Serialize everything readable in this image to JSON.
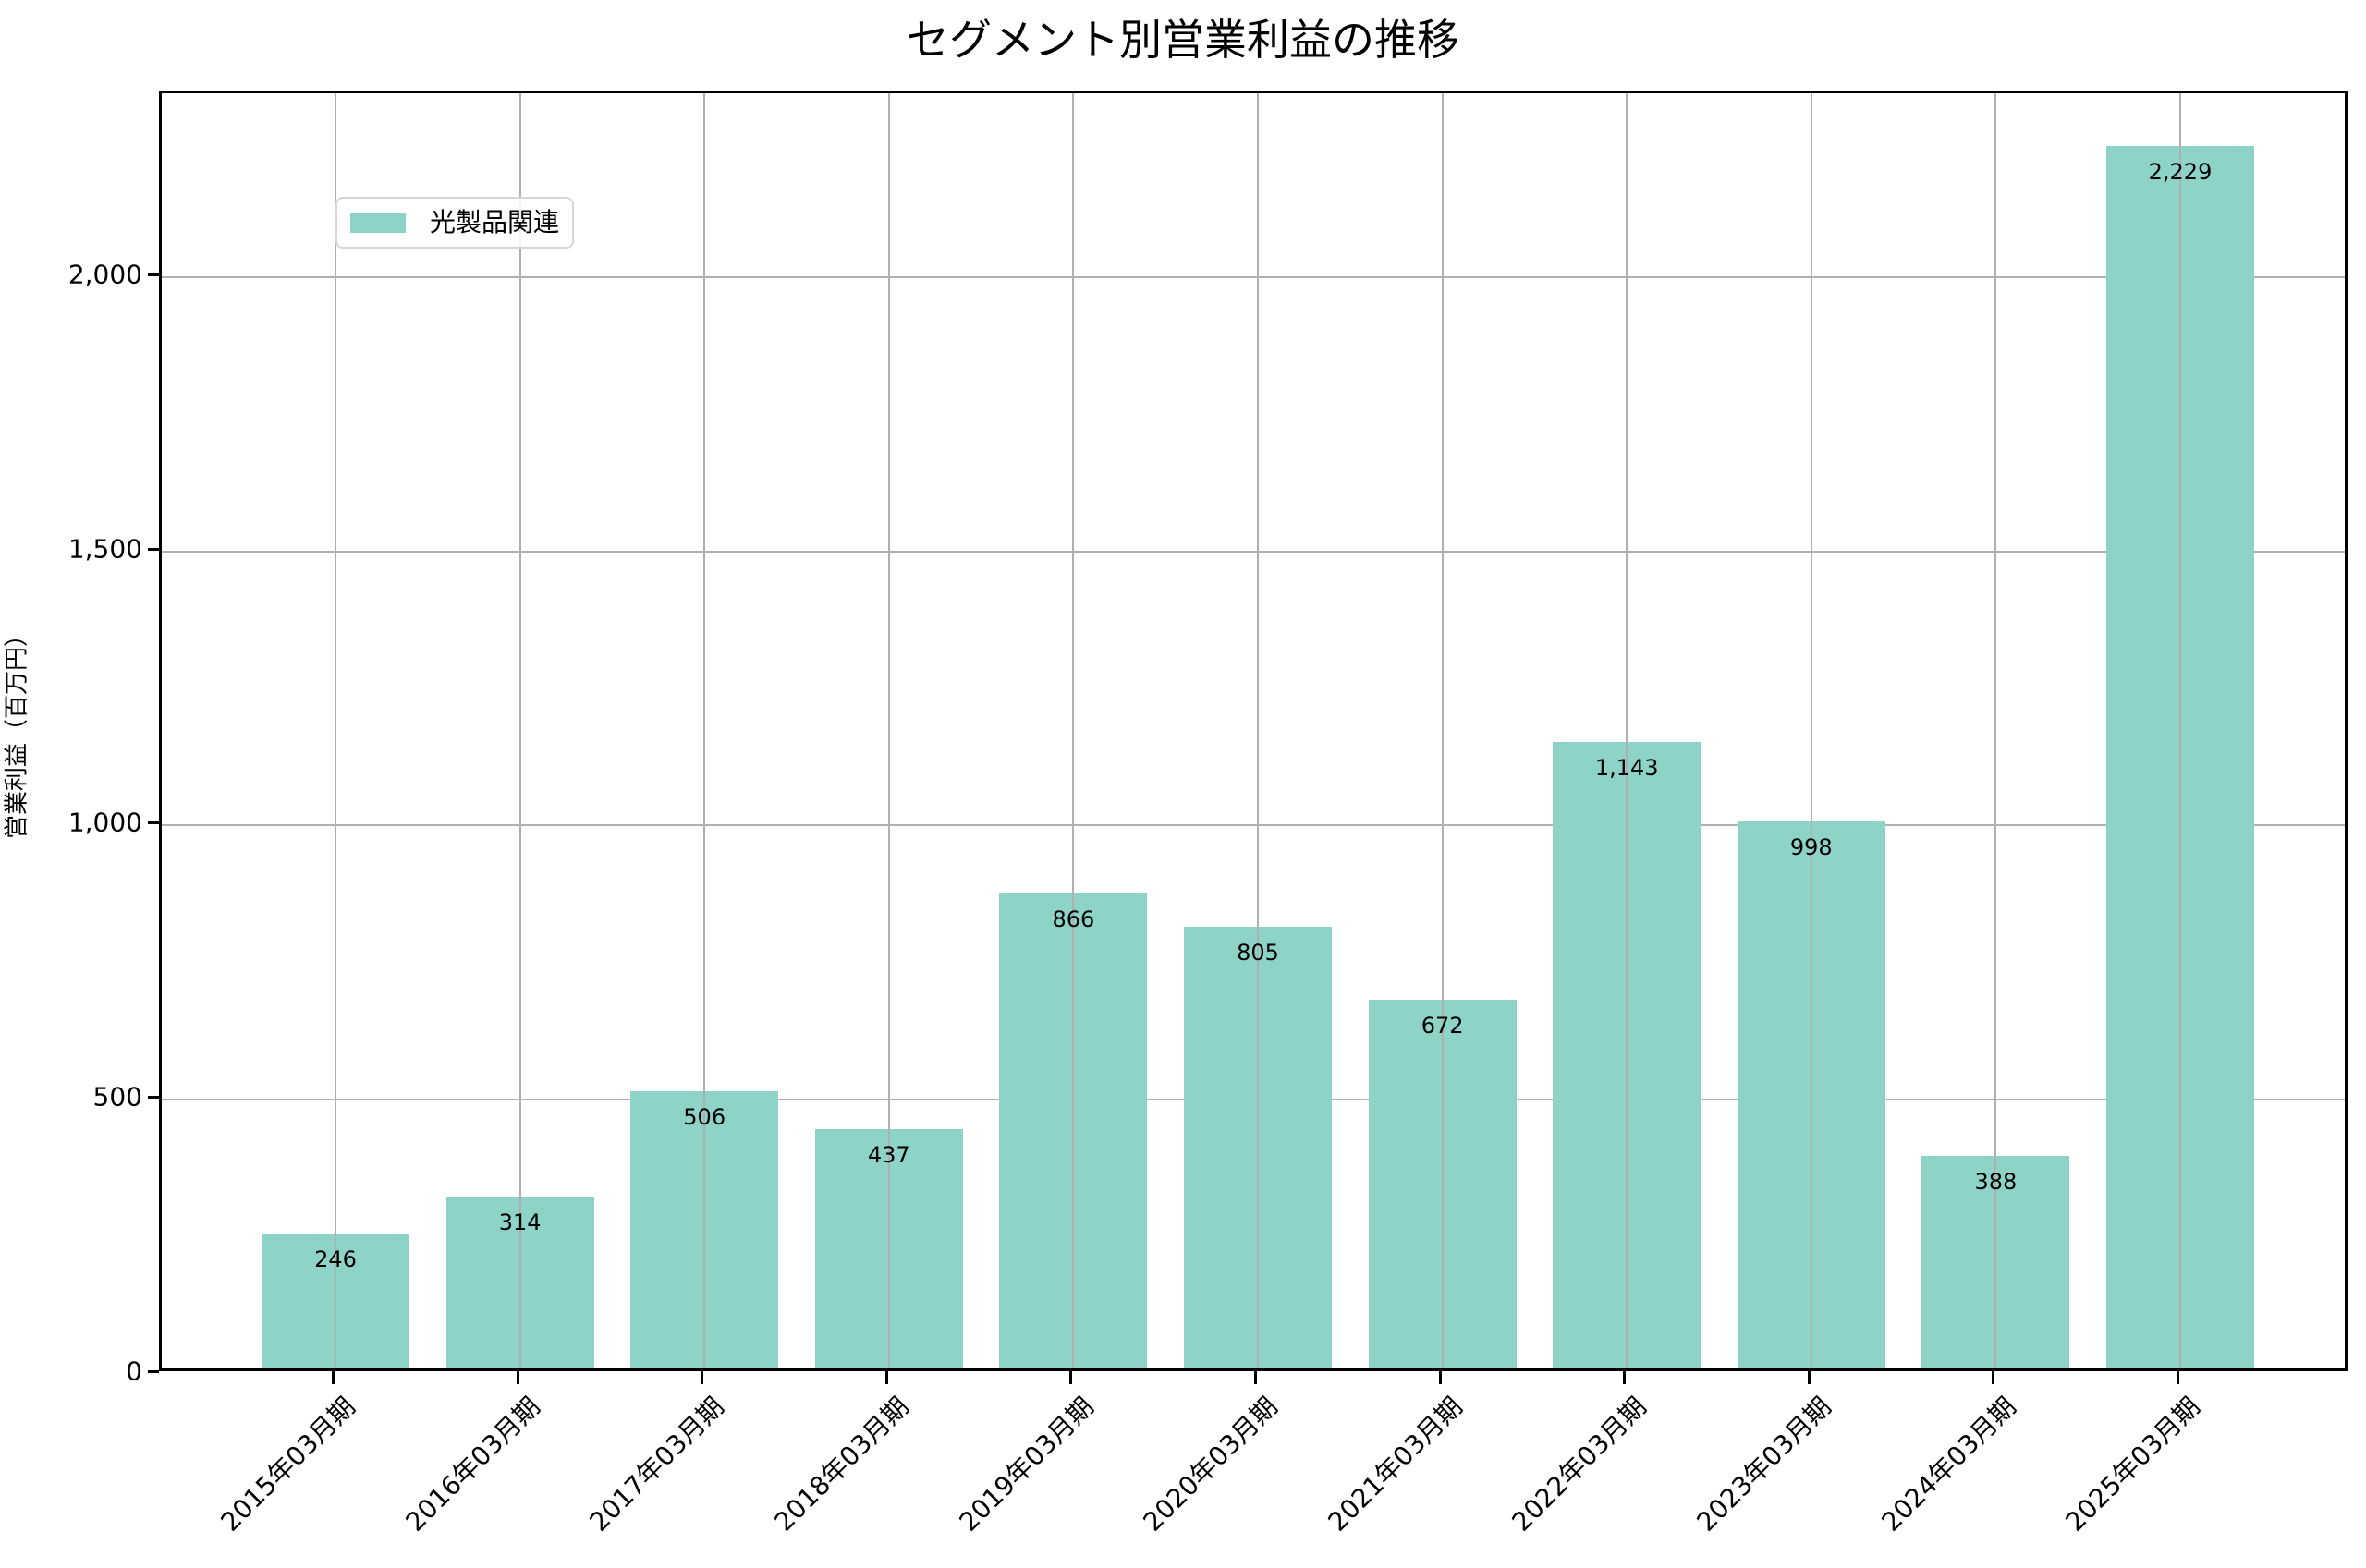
{
  "title": "セグメント別営業利益の推移",
  "colors": {
    "bar": "#8dd3c7",
    "grid": "#b0b0b0",
    "axis": "#000000"
  },
  "legend": {
    "items": [
      {
        "label": "光製品関連",
        "color": "#8dd3c7"
      }
    ]
  },
  "axes": {
    "ylabel": "営業利益（百万円）",
    "yticks": [
      {
        "value": 0,
        "label": "0"
      },
      {
        "value": 500,
        "label": "500"
      },
      {
        "value": 1000,
        "label": "1,000"
      },
      {
        "value": 1500,
        "label": "1,500"
      },
      {
        "value": 2000,
        "label": "2,000"
      }
    ]
  },
  "chart_data": {
    "type": "bar",
    "title": "セグメント別営業利益の推移",
    "xlabel": "",
    "ylabel": "営業利益（百万円）",
    "ylim": [
      0,
      2335
    ],
    "grid": true,
    "legend_position": "upper left",
    "categories": [
      "2015年03月期",
      "2016年03月期",
      "2017年03月期",
      "2018年03月期",
      "2019年03月期",
      "2020年03月期",
      "2021年03月期",
      "2022年03月期",
      "2023年03月期",
      "2024年03月期",
      "2025年03月期"
    ],
    "series": [
      {
        "name": "光製品関連",
        "color": "#8dd3c7",
        "values": [
          246,
          314,
          506,
          437,
          866,
          805,
          672,
          1143,
          998,
          388,
          2229
        ],
        "labels": [
          "246",
          "314",
          "506",
          "437",
          "866",
          "805",
          "672",
          "1,143",
          "998",
          "388",
          "2,229"
        ]
      }
    ]
  }
}
